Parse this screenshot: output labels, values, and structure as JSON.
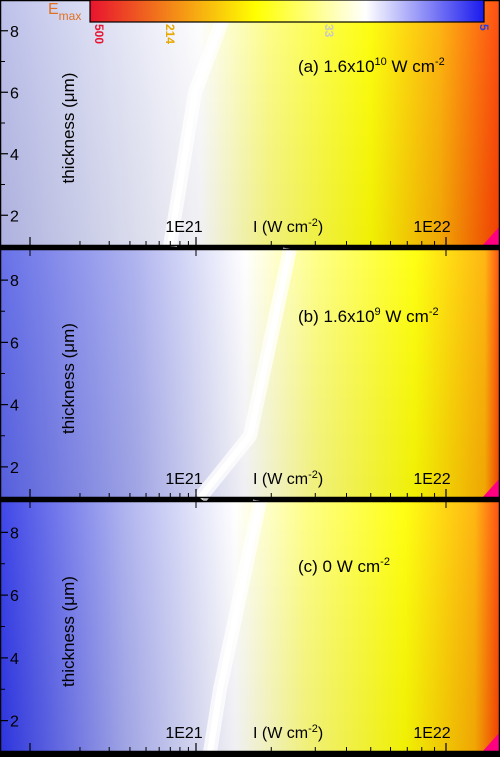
{
  "colorbar": {
    "title_main": "E",
    "title_sub": "max",
    "labels": [
      {
        "text": "500",
        "color": "#e8132f"
      },
      {
        "text": "214",
        "color": "#e8a800"
      },
      {
        "text": "33",
        "color": "#c8c8c8"
      },
      {
        "text": "5",
        "color": "#2a3fe0"
      }
    ],
    "stops": [
      "#e8132f",
      "#ffff00",
      "#ffffff",
      "#1a1aee"
    ]
  },
  "chart_data": [
    {
      "type": "heatmap",
      "annotation": {
        "prefix": "(a) 1.6x10",
        "exp": "10",
        "suffix": " W cm",
        "unit_exp": "-2"
      },
      "ylabel": "thickness (μm)",
      "xlabel": {
        "main": "I (W cm",
        "exp": "-2",
        "close": ")"
      },
      "x_scale": "log",
      "x_ticks": [
        "1E21",
        "1E22"
      ],
      "y_ticks": [
        "2",
        "4",
        "6",
        "8"
      ],
      "ylim": [
        1,
        9
      ],
      "white_contour": {
        "y": [
          1,
          3,
          6,
          9
        ],
        "x_rel": [
          0.34,
          0.36,
          0.39,
          0.46
        ]
      }
    },
    {
      "type": "heatmap",
      "annotation": {
        "prefix": "(b) 1.6x10",
        "exp": "9",
        "suffix": " W cm",
        "unit_exp": "-2"
      },
      "ylabel": "thickness (μm)",
      "xlabel": {
        "main": "I (W cm",
        "exp": "-2",
        "close": ")"
      },
      "x_scale": "log",
      "x_ticks": [
        "1E21",
        "1E22"
      ],
      "y_ticks": [
        "2",
        "4",
        "6",
        "8"
      ],
      "ylim": [
        1,
        9
      ],
      "white_contour": {
        "y": [
          1,
          3,
          6,
          9
        ],
        "x_rel": [
          0.4,
          0.5,
          0.54,
          0.58
        ]
      }
    },
    {
      "type": "heatmap",
      "annotation": {
        "prefix": "(c) 0 W cm",
        "exp": "",
        "suffix": "",
        "unit_exp": "-2"
      },
      "ylabel": "thickness (μm)",
      "xlabel": {
        "main": "I (W cm",
        "exp": "-2",
        "close": ")"
      },
      "x_scale": "log",
      "x_ticks": [
        "1E21",
        "1E22"
      ],
      "y_ticks": [
        "2",
        "4",
        "6",
        "8"
      ],
      "ylim": [
        1,
        9
      ],
      "white_contour": {
        "y": [
          1,
          3,
          6,
          9
        ],
        "x_rel": [
          0.42,
          0.44,
          0.48,
          0.52
        ]
      }
    }
  ]
}
